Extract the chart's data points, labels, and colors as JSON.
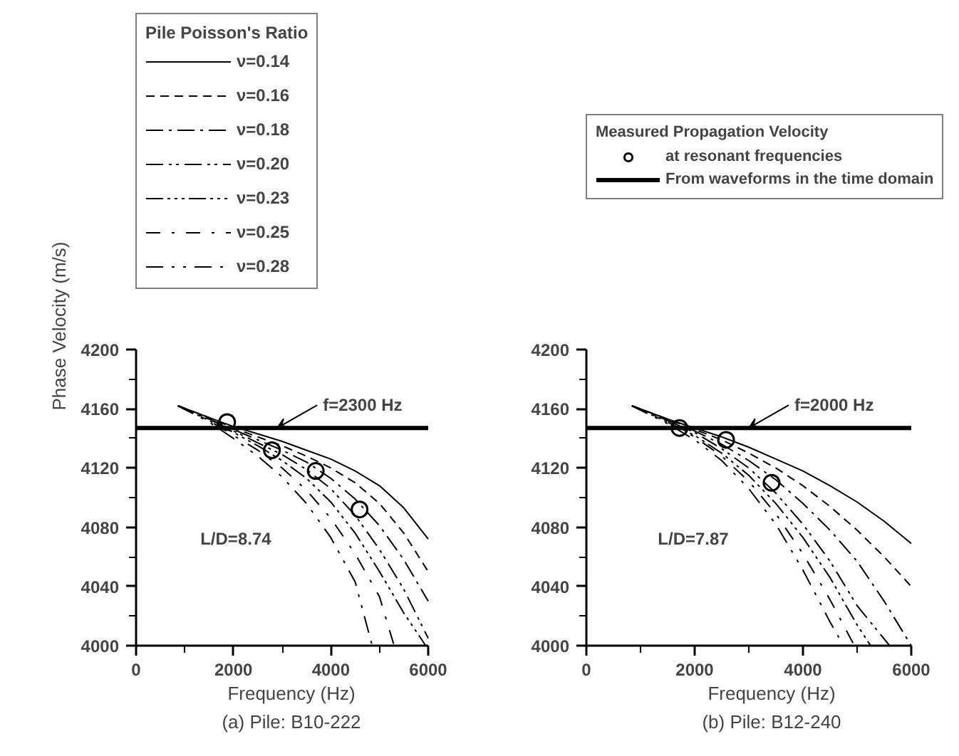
{
  "chart_data": [
    {
      "type": "line",
      "title": "(a) Pile: B10-222",
      "xlabel": "Frequency (Hz)",
      "ylabel": "Phase Velocity (m/s)",
      "legend_title": "Pile Poisson's Ratio",
      "legend": "top left",
      "grid": false,
      "xlim": [
        0,
        6000
      ],
      "ylim": [
        4000,
        4200
      ],
      "xticks": [
        0,
        {
          "value": 1000,
          "label": null
        },
        2000,
        {
          "value": 3000,
          "label": null
        },
        4000,
        {
          "value": 5000,
          "label": null
        },
        6000
      ],
      "yticks": [
        4000,
        {
          "value": 4020,
          "label": null
        },
        4040,
        {
          "value": 4060,
          "label": null
        },
        4080,
        {
          "value": 4100,
          "label": null
        },
        4120,
        {
          "value": 4140,
          "label": null
        },
        4160,
        {
          "value": 4180,
          "label": null
        },
        4200
      ],
      "annotations": [
        {
          "text": "f=2300 Hz",
          "x": 2900,
          "y": 4147
        },
        "L/D=8.74"
      ],
      "series": [
        {
          "name": "ν=0.14",
          "color": "#000000",
          "line_style": "solid",
          "x": [
            860,
            1500,
            2000,
            2500,
            3000,
            3500,
            4000,
            4500,
            5000,
            5500,
            6000
          ],
          "values": [
            4162,
            4154,
            4148,
            4143,
            4138,
            4132,
            4126,
            4118,
            4108,
            4093,
            4072
          ]
        },
        {
          "name": "ν=0.16",
          "color": "#000000",
          "line_style": "dashed",
          "x": [
            860,
            1500,
            2000,
            2500,
            3000,
            3500,
            4000,
            4500,
            5000,
            5500,
            6000
          ],
          "values": [
            4162,
            4154,
            4147,
            4141,
            4135,
            4128,
            4120,
            4110,
            4096,
            4076,
            4050
          ]
        },
        {
          "name": "ν=0.18",
          "color": "#000000",
          "line_style": "dashdot",
          "x": [
            860,
            1500,
            2000,
            2500,
            3000,
            3500,
            4000,
            4500,
            5000,
            5500,
            6000
          ],
          "values": [
            4162,
            4153,
            4146,
            4139,
            4132,
            4124,
            4113,
            4099,
            4081,
            4058,
            4030
          ]
        },
        {
          "name": "ν=0.20",
          "color": "#000000",
          "line_style": "dashdotdot",
          "x": [
            860,
            1500,
            2000,
            2500,
            3000,
            3500,
            4000,
            4500,
            5000,
            5500,
            6000
          ],
          "values": [
            4162,
            4153,
            4145,
            4137,
            4129,
            4119,
            4106,
            4088,
            4065,
            4038,
            4005
          ]
        },
        {
          "name": "ν=0.23",
          "color": "#000000",
          "line_style": "dashdotdotdot",
          "x": [
            860,
            1500,
            2000,
            2500,
            3000,
            3500,
            4000,
            4500,
            5000,
            5500,
            5950
          ],
          "values": [
            4162,
            4152,
            4144,
            4135,
            4125,
            4113,
            4097,
            4076,
            4050,
            4022,
            4000
          ]
        },
        {
          "name": "ν=0.25",
          "color": "#000000",
          "line_style": "longdashdot",
          "x": [
            860,
            1500,
            2000,
            2500,
            3000,
            3500,
            4000,
            4500,
            5000,
            5300
          ],
          "values": [
            4162,
            4152,
            4142,
            4132,
            4120,
            4105,
            4086,
            4062,
            4033,
            4000
          ]
        },
        {
          "name": "ν=0.28",
          "color": "#000000",
          "line_style": "longdashdotdot",
          "x": [
            860,
            1500,
            2000,
            2500,
            3000,
            3500,
            4000,
            4500,
            4850
          ],
          "values": [
            4162,
            4151,
            4140,
            4128,
            4114,
            4096,
            4073,
            4043,
            4000
          ]
        },
        {
          "type": "scatter",
          "marker": "circle",
          "color": "#000000",
          "x": [
            1870,
            2790,
            3690,
            4590
          ],
          "values": [
            4151,
            4132,
            4118,
            4092
          ]
        }
      ],
      "ref_lines": [
        {
          "axis": "y",
          "value": 4147,
          "color": "#000000"
        }
      ]
    },
    {
      "type": "line",
      "title": "(b) Pile: B12-240",
      "xlabel": "Frequency (Hz)",
      "legend_title": "Measured Propagation Velocity",
      "legend": "top right",
      "grid": false,
      "xlim": [
        0,
        6000
      ],
      "ylim": [
        4000,
        4200
      ],
      "xticks": [
        0,
        {
          "value": 1000,
          "label": null
        },
        2000,
        {
          "value": 3000,
          "label": null
        },
        4000,
        {
          "value": 5000,
          "label": null
        },
        6000
      ],
      "yticks": [
        4000,
        {
          "value": 4020,
          "label": null
        },
        4040,
        {
          "value": 4060,
          "label": null
        },
        4080,
        {
          "value": 4100,
          "label": null
        },
        4120,
        {
          "value": 4140,
          "label": null
        },
        4160,
        {
          "value": 4180,
          "label": null
        },
        4200
      ],
      "annotations": [
        {
          "text": "f=2000 Hz",
          "x": 3000,
          "y": 4147
        },
        "L/D=7.87"
      ],
      "series": [
        {
          "color": "#000000",
          "line_style": "solid",
          "x": [
            840,
            1500,
            2000,
            2500,
            3000,
            3500,
            4000,
            4500,
            5000,
            5500,
            6000
          ],
          "values": [
            4162,
            4153,
            4147,
            4141,
            4134,
            4126,
            4118,
            4108,
            4097,
            4084,
            4069
          ]
        },
        {
          "color": "#000000",
          "line_style": "dashed",
          "x": [
            840,
            1500,
            2000,
            2500,
            3000,
            3500,
            4000,
            4500,
            5000,
            5500,
            6000
          ],
          "values": [
            4162,
            4153,
            4146,
            4139,
            4130,
            4120,
            4108,
            4094,
            4078,
            4060,
            4040
          ]
        },
        {
          "color": "#000000",
          "line_style": "dashdot",
          "x": [
            840,
            1500,
            2000,
            2500,
            3000,
            3500,
            4000,
            4500,
            5000,
            5500,
            6000
          ],
          "values": [
            4162,
            4152,
            4145,
            4136,
            4125,
            4112,
            4096,
            4078,
            4057,
            4030,
            4000
          ]
        },
        {
          "color": "#000000",
          "line_style": "dashdotdot",
          "x": [
            840,
            1500,
            2000,
            2500,
            3000,
            3500,
            4000,
            4500,
            5000,
            5600
          ],
          "values": [
            4162,
            4152,
            4144,
            4133,
            4120,
            4103,
            4082,
            4057,
            4027,
            4000
          ]
        },
        {
          "color": "#000000",
          "line_style": "dashdotdotdot",
          "x": [
            840,
            1500,
            2000,
            2500,
            3000,
            3500,
            4000,
            4500,
            5000,
            5250
          ],
          "values": [
            4162,
            4151,
            4142,
            4130,
            4115,
            4096,
            4073,
            4046,
            4014,
            4000
          ]
        },
        {
          "color": "#000000",
          "line_style": "longdashdot",
          "x": [
            840,
            1500,
            2000,
            2500,
            3000,
            3500,
            4000,
            4500,
            4950
          ],
          "values": [
            4162,
            4151,
            4141,
            4128,
            4111,
            4089,
            4062,
            4031,
            4000
          ]
        },
        {
          "color": "#000000",
          "line_style": "longdashdotdot",
          "x": [
            840,
            1500,
            2000,
            2500,
            3000,
            3500,
            4000,
            4500,
            4750
          ],
          "values": [
            4162,
            4150,
            4139,
            4125,
            4106,
            4082,
            4051,
            4016,
            4000
          ]
        },
        {
          "name": "at resonant frequencies",
          "type": "scatter",
          "marker": "circle",
          "color": "#000000",
          "x": [
            1720,
            2580,
            3420
          ],
          "values": [
            4147,
            4139,
            4110
          ]
        }
      ],
      "ref_lines": [
        {
          "axis": "y",
          "value": 4147,
          "label": "From waveforms in the time domain",
          "color": "#000000"
        }
      ]
    }
  ]
}
